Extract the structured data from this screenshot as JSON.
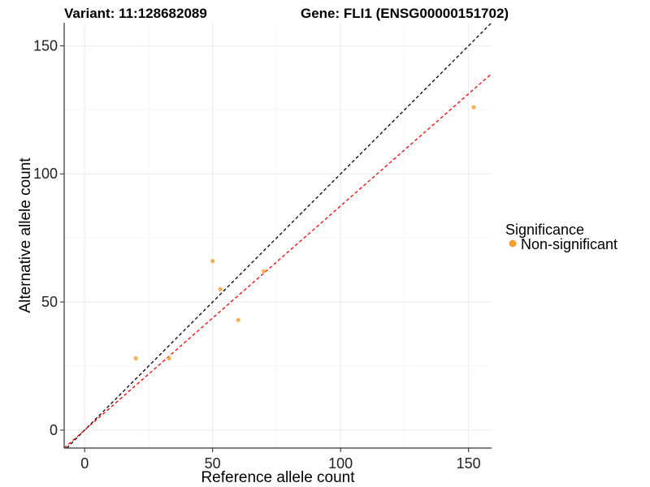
{
  "chart_data": {
    "type": "scatter",
    "title_left": "Variant: 11:128682089",
    "title_right": "Gene: FLI1 (ENSG00000151702)",
    "xlabel": "Reference allele count",
    "ylabel": "Alternative allele count",
    "xlim": [
      -8,
      159
    ],
    "ylim": [
      -7,
      159
    ],
    "x_ticks": [
      0,
      50,
      100,
      150
    ],
    "y_ticks": [
      0,
      50,
      100,
      150
    ],
    "grid": true,
    "legend": {
      "title": "Significance",
      "placement": "right",
      "entries": [
        {
          "label": "Non-significant",
          "color": "#f7a030"
        }
      ]
    },
    "series": [
      {
        "name": "Non-significant",
        "color": "#f7a030",
        "points": [
          {
            "x": 20,
            "y": 28
          },
          {
            "x": 33,
            "y": 28
          },
          {
            "x": 50,
            "y": 66
          },
          {
            "x": 53,
            "y": 55
          },
          {
            "x": 60,
            "y": 43
          },
          {
            "x": 70,
            "y": 62
          },
          {
            "x": 152,
            "y": 126
          }
        ]
      }
    ],
    "reference_lines": [
      {
        "style": "dashed",
        "color": "#000000",
        "slope": 1.0,
        "intercept": 0
      },
      {
        "style": "dashed",
        "color": "#ff0000",
        "slope": 0.875,
        "intercept": 0
      }
    ]
  }
}
